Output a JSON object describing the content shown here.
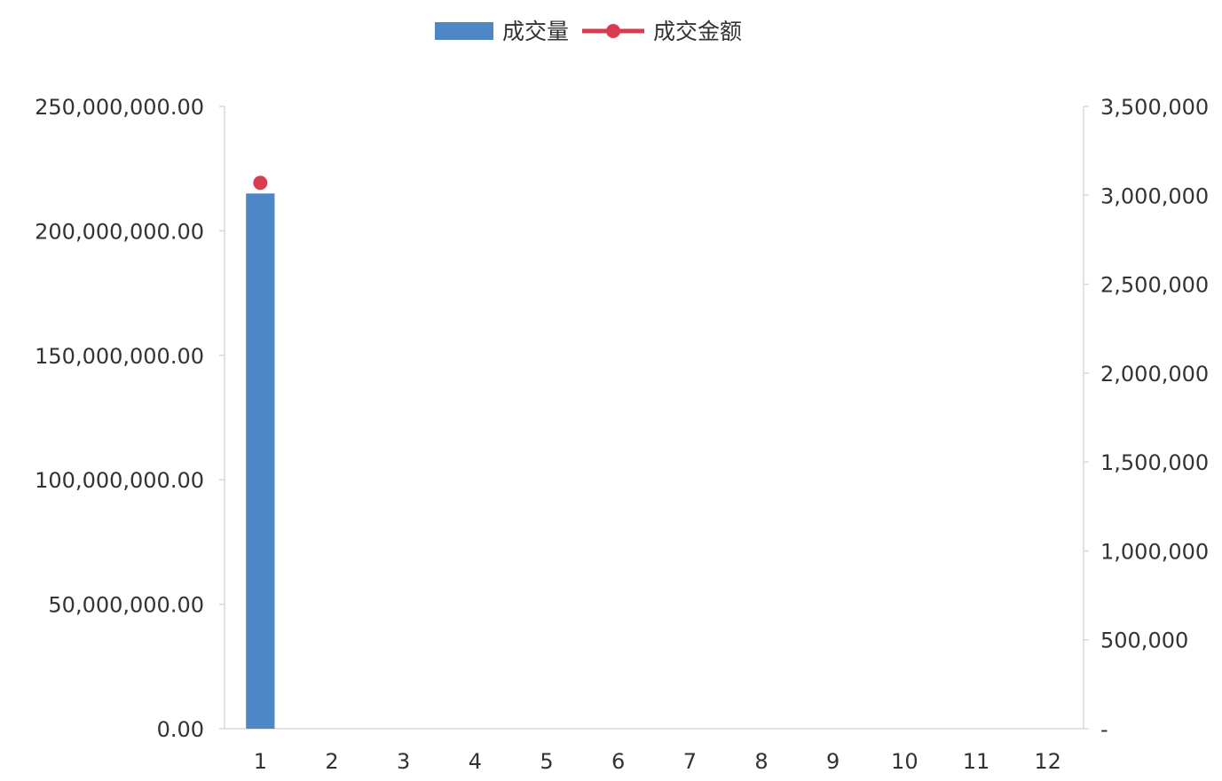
{
  "chart_data": {
    "type": "bar",
    "categories": [
      "1",
      "2",
      "3",
      "4",
      "5",
      "6",
      "7",
      "8",
      "9",
      "10",
      "11",
      "12"
    ],
    "series": [
      {
        "name": "成交量",
        "kind": "bar",
        "axis": "left",
        "color": "#4f86c6",
        "values": [
          215000000,
          0,
          0,
          0,
          0,
          0,
          0,
          0,
          0,
          0,
          0,
          0
        ]
      },
      {
        "name": "成交金额",
        "kind": "line",
        "axis": "right",
        "color": "#d93b50",
        "values": [
          3070000,
          null,
          null,
          null,
          null,
          null,
          null,
          null,
          null,
          null,
          null,
          null
        ]
      }
    ],
    "y_left": {
      "lim": [
        0,
        250000000
      ],
      "tick_labels": [
        "0.00",
        "50,000,000.00",
        "100,000,000.00",
        "150,000,000.00",
        "200,000,000.00",
        "250,000,000.00"
      ]
    },
    "y_right": {
      "lim": [
        0,
        3500000
      ],
      "tick_labels": [
        "-",
        "500,000",
        "1,000,000",
        "1,500,000",
        "2,000,000",
        "2,500,000",
        "3,000,000",
        "3,500,000"
      ]
    },
    "legend": "top-center",
    "grid": false
  }
}
